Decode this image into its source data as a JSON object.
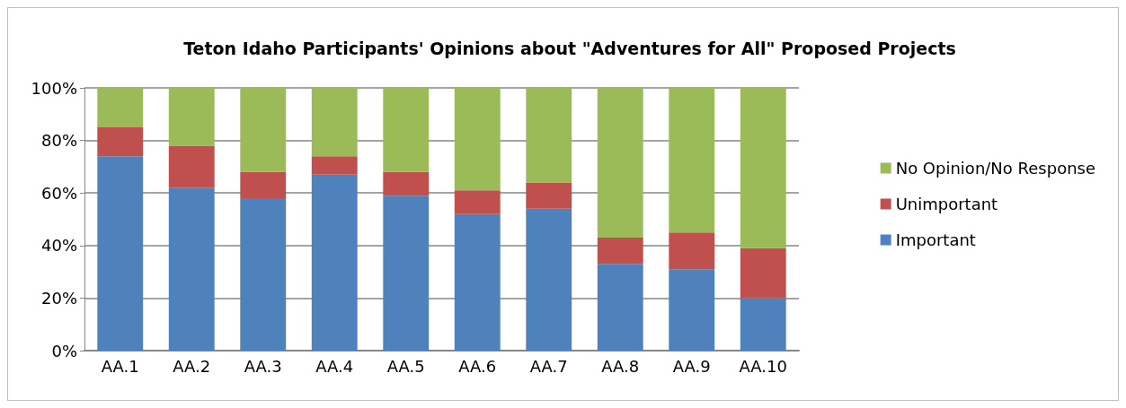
{
  "chart_data": {
    "type": "bar",
    "title": "Teton Idaho Participants' Opinions about \"Adventures for All\" Proposed Projects",
    "categories": [
      "AA.1",
      "AA.2",
      "AA.3",
      "AA.4",
      "AA.5",
      "AA.6",
      "AA.7",
      "AA.8",
      "AA.9",
      "AA.10"
    ],
    "stacked": true,
    "series": [
      {
        "name": "Important",
        "color": "#4f81bd",
        "values": [
          74,
          62,
          58,
          67,
          59,
          52,
          54,
          33,
          31,
          20
        ]
      },
      {
        "name": "Unimportant",
        "color": "#c0504d",
        "values": [
          11,
          16,
          10,
          7,
          9,
          9,
          10,
          10,
          14,
          19
        ]
      },
      {
        "name": "No Opinion/No Response",
        "color": "#9bbb59",
        "values": [
          15,
          22,
          32,
          26,
          32,
          39,
          36,
          57,
          55,
          61
        ]
      }
    ],
    "ylim": [
      0,
      100
    ],
    "yticks": [
      {
        "value": 0,
        "label": "0%"
      },
      {
        "value": 20,
        "label": "20%"
      },
      {
        "value": 40,
        "label": "40%"
      },
      {
        "value": 60,
        "label": "60%"
      },
      {
        "value": 80,
        "label": "80%"
      },
      {
        "value": 100,
        "label": "100%"
      }
    ],
    "grid": "y",
    "legend": "right"
  }
}
